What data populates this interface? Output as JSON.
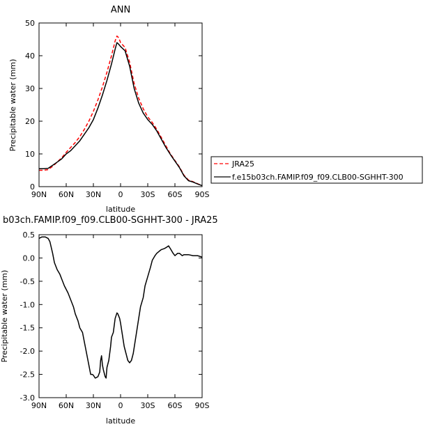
{
  "chart_data": [
    {
      "type": "line",
      "title": "ANN",
      "xlabel": "latitude",
      "ylabel": "Precipitable water (mm)",
      "ylim": [
        0,
        50
      ],
      "yticks": [
        0,
        10,
        20,
        30,
        40,
        50
      ],
      "xlim": [
        90,
        -90
      ],
      "xticks": [
        90,
        60,
        30,
        0,
        -30,
        -60,
        -90
      ],
      "xtick_labels": [
        "90N",
        "60N",
        "30N",
        "0",
        "30S",
        "60S",
        "90S"
      ],
      "legend_position": "right",
      "series": [
        {
          "name": "JRA25",
          "color": "#ff0000",
          "style": "dashed",
          "points": [
            [
              90,
              5.0
            ],
            [
              85,
              5.0
            ],
            [
              80,
              5.2
            ],
            [
              75,
              6.2
            ],
            [
              70,
              7.5
            ],
            [
              65,
              8.8
            ],
            [
              60,
              10.5
            ],
            [
              55,
              12.0
            ],
            [
              50,
              13.5
            ],
            [
              45,
              15.3
            ],
            [
              40,
              17.5
            ],
            [
              35,
              20.0
            ],
            [
              30,
              23.0
            ],
            [
              25,
              26.5
            ],
            [
              20,
              30.5
            ],
            [
              15,
              35.0
            ],
            [
              10,
              40.0
            ],
            [
              6,
              44.5
            ],
            [
              4,
              46.0
            ],
            [
              2,
              45.5
            ],
            [
              0,
              44.0
            ],
            [
              -5,
              42.5
            ],
            [
              -10,
              38.0
            ],
            [
              -15,
              31.5
            ],
            [
              -20,
              27.0
            ],
            [
              -25,
              23.8
            ],
            [
              -30,
              21.3
            ],
            [
              -35,
              19.6
            ],
            [
              -40,
              17.5
            ],
            [
              -45,
              15.0
            ],
            [
              -50,
              12.5
            ],
            [
              -55,
              10.0
            ],
            [
              -60,
              8.0
            ],
            [
              -65,
              6.0
            ],
            [
              -70,
              3.5
            ],
            [
              -75,
              2.0
            ],
            [
              -80,
              1.5
            ],
            [
              -85,
              0.9
            ],
            [
              -90,
              0.3
            ]
          ]
        },
        {
          "name": "f.e15b03ch.FAMIP.f09_f09.CLB00-SGHHT-300",
          "color": "#000000",
          "style": "solid",
          "points": [
            [
              90,
              5.5
            ],
            [
              85,
              5.5
            ],
            [
              80,
              5.6
            ],
            [
              75,
              6.5
            ],
            [
              70,
              7.5
            ],
            [
              65,
              8.5
            ],
            [
              60,
              10.0
            ],
            [
              55,
              11.0
            ],
            [
              50,
              12.5
            ],
            [
              45,
              14.0
            ],
            [
              40,
              16.0
            ],
            [
              35,
              18.0
            ],
            [
              30,
              20.5
            ],
            [
              25,
              24.0
            ],
            [
              20,
              28.0
            ],
            [
              15,
              32.5
            ],
            [
              10,
              37.5
            ],
            [
              6,
              42.0
            ],
            [
              4,
              44.0
            ],
            [
              2,
              43.5
            ],
            [
              0,
              42.8
            ],
            [
              -5,
              41.5
            ],
            [
              -10,
              36.8
            ],
            [
              -15,
              30.0
            ],
            [
              -20,
              25.5
            ],
            [
              -25,
              22.5
            ],
            [
              -30,
              20.5
            ],
            [
              -35,
              19.0
            ],
            [
              -40,
              17.0
            ],
            [
              -45,
              14.5
            ],
            [
              -50,
              12.0
            ],
            [
              -55,
              9.8
            ],
            [
              -60,
              7.8
            ],
            [
              -65,
              5.8
            ],
            [
              -70,
              3.3
            ],
            [
              -75,
              1.8
            ],
            [
              -80,
              1.4
            ],
            [
              -85,
              0.8
            ],
            [
              -90,
              0.3
            ]
          ]
        }
      ]
    },
    {
      "type": "line",
      "title": "b03ch.FAMIP.f09_f09.CLB00-SGHHT-300 - JRA25",
      "xlabel": "latitude",
      "ylabel": "Precipitable water (mm)",
      "ylim": [
        -3.0,
        0.5
      ],
      "yticks": [
        -3.0,
        -2.5,
        -2.0,
        -1.5,
        -1.0,
        -0.5,
        0.0,
        0.5
      ],
      "ytick_labels": [
        "-3.0",
        "-2.5",
        "-2.0",
        "-1.5",
        "-1.0",
        "-0.5",
        "0.0",
        "0.5"
      ],
      "xlim": [
        90,
        -90
      ],
      "xticks": [
        90,
        60,
        30,
        0,
        -30,
        -60,
        -90
      ],
      "xtick_labels": [
        "90N",
        "60N",
        "30N",
        "0",
        "30S",
        "60S",
        "90S"
      ],
      "series": [
        {
          "color": "#000000",
          "style": "solid",
          "points": [
            [
              90,
              0.42
            ],
            [
              87,
              0.45
            ],
            [
              83,
              0.45
            ],
            [
              80,
              0.42
            ],
            [
              78,
              0.35
            ],
            [
              75,
              0.1
            ],
            [
              73,
              -0.1
            ],
            [
              70,
              -0.25
            ],
            [
              67,
              -0.35
            ],
            [
              65,
              -0.45
            ],
            [
              62,
              -0.6
            ],
            [
              58,
              -0.75
            ],
            [
              55,
              -0.9
            ],
            [
              52,
              -1.05
            ],
            [
              50,
              -1.2
            ],
            [
              47,
              -1.35
            ],
            [
              45,
              -1.5
            ],
            [
              42,
              -1.6
            ],
            [
              40,
              -1.8
            ],
            [
              38,
              -2.0
            ],
            [
              36,
              -2.2
            ],
            [
              34,
              -2.4
            ],
            [
              33,
              -2.5
            ],
            [
              31,
              -2.5
            ],
            [
              30,
              -2.52
            ],
            [
              28,
              -2.58
            ],
            [
              27,
              -2.57
            ],
            [
              25,
              -2.55
            ],
            [
              23,
              -2.45
            ],
            [
              22,
              -2.2
            ],
            [
              21,
              -2.1
            ],
            [
              20,
              -2.3
            ],
            [
              19,
              -2.4
            ],
            [
              17,
              -2.55
            ],
            [
              16,
              -2.58
            ],
            [
              15,
              -2.35
            ],
            [
              13,
              -2.2
            ],
            [
              11,
              -1.9
            ],
            [
              10,
              -1.7
            ],
            [
              8,
              -1.6
            ],
            [
              6,
              -1.3
            ],
            [
              4,
              -1.18
            ],
            [
              3,
              -1.2
            ],
            [
              1,
              -1.3
            ],
            [
              0,
              -1.4
            ],
            [
              -2,
              -1.65
            ],
            [
              -4,
              -1.9
            ],
            [
              -6,
              -2.05
            ],
            [
              -8,
              -2.2
            ],
            [
              -10,
              -2.25
            ],
            [
              -12,
              -2.2
            ],
            [
              -14,
              -2.05
            ],
            [
              -16,
              -1.8
            ],
            [
              -18,
              -1.55
            ],
            [
              -20,
              -1.3
            ],
            [
              -22,
              -1.05
            ],
            [
              -25,
              -0.85
            ],
            [
              -27,
              -0.6
            ],
            [
              -30,
              -0.4
            ],
            [
              -33,
              -0.2
            ],
            [
              -35,
              -0.05
            ],
            [
              -38,
              0.05
            ],
            [
              -40,
              0.1
            ],
            [
              -43,
              0.15
            ],
            [
              -45,
              0.18
            ],
            [
              -48,
              0.2
            ],
            [
              -50,
              0.22
            ],
            [
              -53,
              0.26
            ],
            [
              -55,
              0.2
            ],
            [
              -58,
              0.1
            ],
            [
              -60,
              0.05
            ],
            [
              -63,
              0.1
            ],
            [
              -65,
              0.1
            ],
            [
              -68,
              0.05
            ],
            [
              -70,
              0.07
            ],
            [
              -75,
              0.07
            ],
            [
              -80,
              0.05
            ],
            [
              -85,
              0.05
            ],
            [
              -90,
              0.02
            ]
          ]
        }
      ]
    }
  ]
}
